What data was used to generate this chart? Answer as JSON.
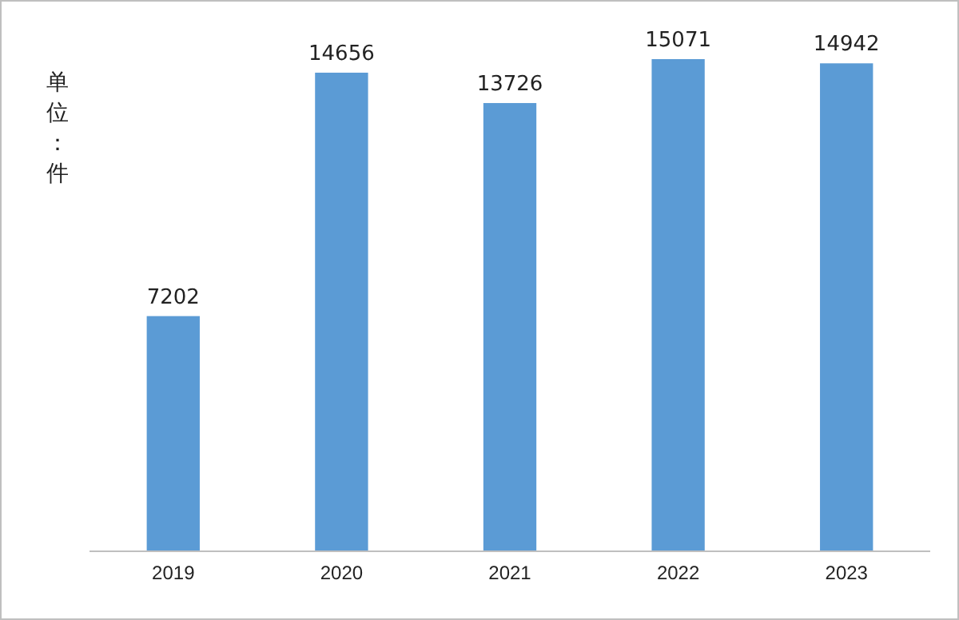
{
  "chart_data": {
    "type": "bar",
    "ylabel": "单位：件",
    "categories": [
      "2019",
      "2020",
      "2021",
      "2022",
      "2023"
    ],
    "values": [
      7202,
      14656,
      13726,
      15071,
      14942
    ],
    "color": "#5b9bd5",
    "data_labels": true
  }
}
